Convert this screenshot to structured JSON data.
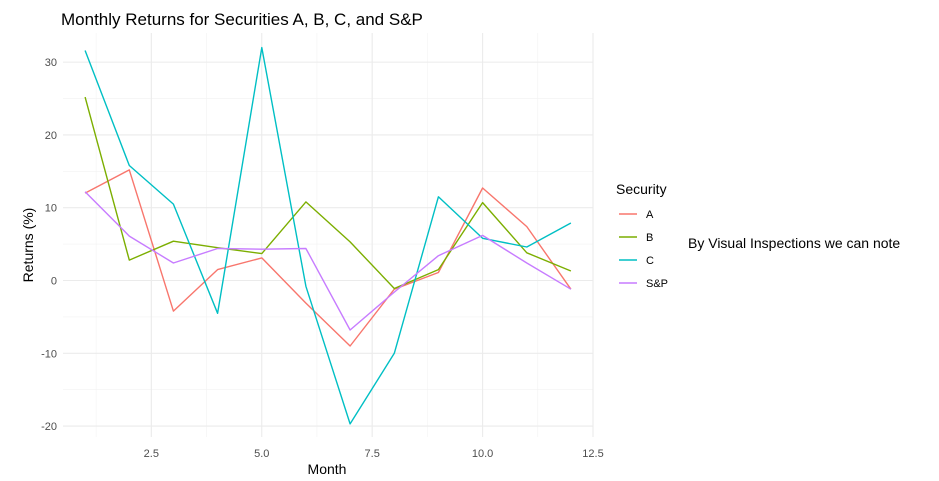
{
  "chart_data": {
    "type": "line",
    "title": "Monthly Returns for Securities A, B, C, and S&P",
    "xlabel": "Month",
    "ylabel": "Returns (%)",
    "xlim": [
      0.5,
      12.5
    ],
    "ylim": [
      -21.5,
      34
    ],
    "x_ticks": [
      2.5,
      5.0,
      7.5,
      10.0,
      12.5
    ],
    "x_tick_labels": [
      "2.5",
      "5.0",
      "7.5",
      "10.0",
      "12.5"
    ],
    "y_ticks": [
      -20,
      -10,
      0,
      10,
      20,
      30
    ],
    "y_tick_labels": [
      "-20",
      "-10",
      "0",
      "10",
      "20",
      "30"
    ],
    "grid": true,
    "legend_title": "Security",
    "legend_position": "right",
    "x": [
      1,
      2,
      3,
      4,
      5,
      6,
      7,
      8,
      9,
      10,
      11,
      12
    ],
    "series": [
      {
        "name": "A",
        "color": "#F8766D",
        "values": [
          12.0,
          15.2,
          -4.2,
          1.5,
          3.1,
          -3.1,
          -9.0,
          -1.2,
          1.1,
          12.7,
          7.4,
          -1.2
        ]
      },
      {
        "name": "B",
        "color": "#7CAE00",
        "values": [
          25.2,
          2.8,
          5.4,
          4.5,
          3.7,
          10.8,
          5.3,
          -1.1,
          1.5,
          10.7,
          3.8,
          1.3
        ]
      },
      {
        "name": "C",
        "color": "#00BFC4",
        "values": [
          31.6,
          15.8,
          10.5,
          -4.5,
          32.0,
          -0.8,
          -19.7,
          -10.0,
          11.5,
          5.8,
          4.6,
          7.9
        ]
      },
      {
        "name": "S&P",
        "color": "#C77CFF",
        "values": [
          12.2,
          6.1,
          2.4,
          4.4,
          4.3,
          4.4,
          -6.8,
          -1.6,
          3.4,
          6.2,
          2.4,
          -1.2
        ]
      }
    ]
  },
  "annotation": "By Visual Inspections we can note"
}
